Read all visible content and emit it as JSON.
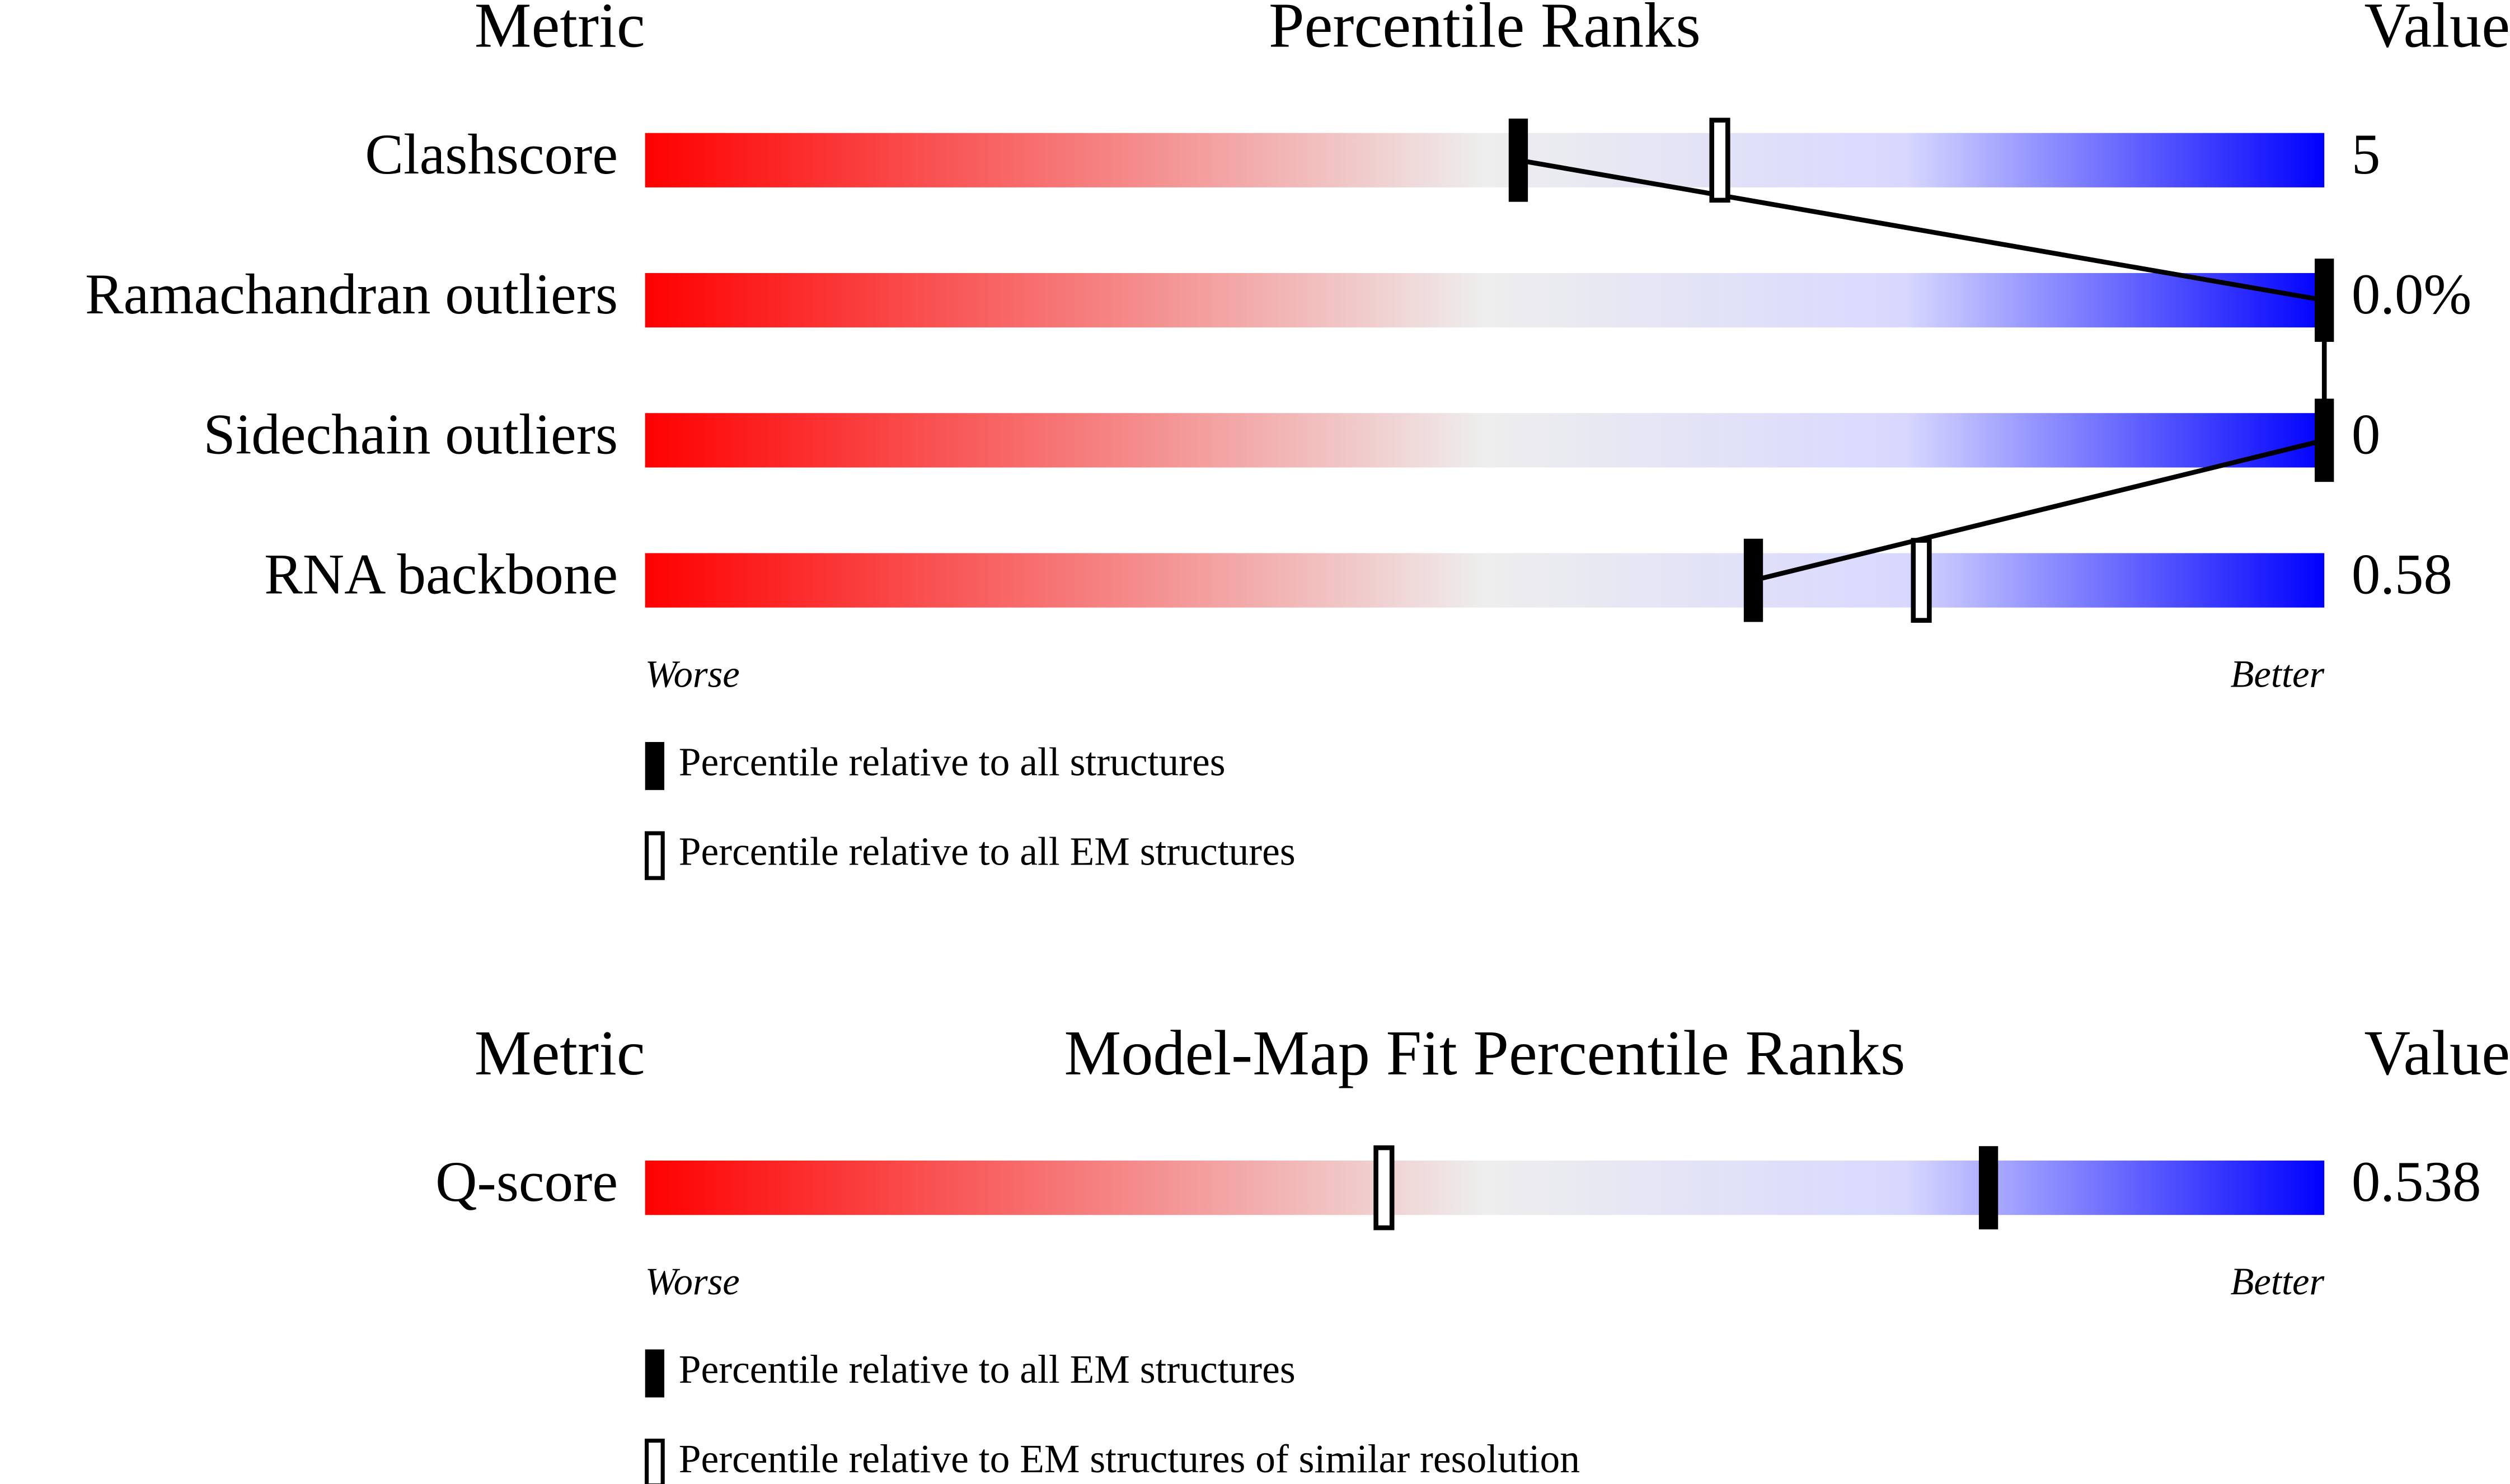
{
  "chart_data": [
    {
      "type": "percentile",
      "header": {
        "metric": "Metric",
        "title": "Percentile Ranks",
        "value": "Value"
      },
      "categories": [
        "Clashscore",
        "Ramachandran outliers",
        "Sidechain outliers",
        "RNA backbone"
      ],
      "metric_values": [
        "5",
        "0.0%",
        "0",
        "0.58"
      ],
      "series": [
        {
          "name": "Percentile relative to all structures",
          "style": "filled",
          "color": "#000000",
          "values": [
            52,
            100,
            100,
            66
          ]
        },
        {
          "name": "Percentile relative to all EM structures",
          "style": "open",
          "color": "#000000",
          "values": [
            64,
            null,
            null,
            76
          ]
        }
      ],
      "xlim": [
        0,
        100
      ],
      "axis_labels": {
        "low": "Worse",
        "high": "Better"
      },
      "gradient": [
        "#ff0000",
        "#eeeeee",
        "#d8d8ff",
        "#0000ff"
      ],
      "connect": true
    },
    {
      "type": "percentile",
      "header": {
        "metric": "Metric",
        "title": "Model-Map Fit Percentile Ranks",
        "value": "Value"
      },
      "categories": [
        "Q-score"
      ],
      "metric_values": [
        "0.538"
      ],
      "series": [
        {
          "name": "Percentile relative to all EM structures",
          "style": "filled",
          "color": "#000000",
          "values": [
            80
          ]
        },
        {
          "name": "Percentile relative to EM structures of similar resolution",
          "style": "open",
          "color": "#000000",
          "values": [
            44
          ]
        }
      ],
      "xlim": [
        0,
        100
      ],
      "axis_labels": {
        "low": "Worse",
        "high": "Better"
      },
      "gradient": [
        "#ff0000",
        "#eeeeee",
        "#d8d8ff",
        "#0000ff"
      ],
      "connect": false
    }
  ]
}
